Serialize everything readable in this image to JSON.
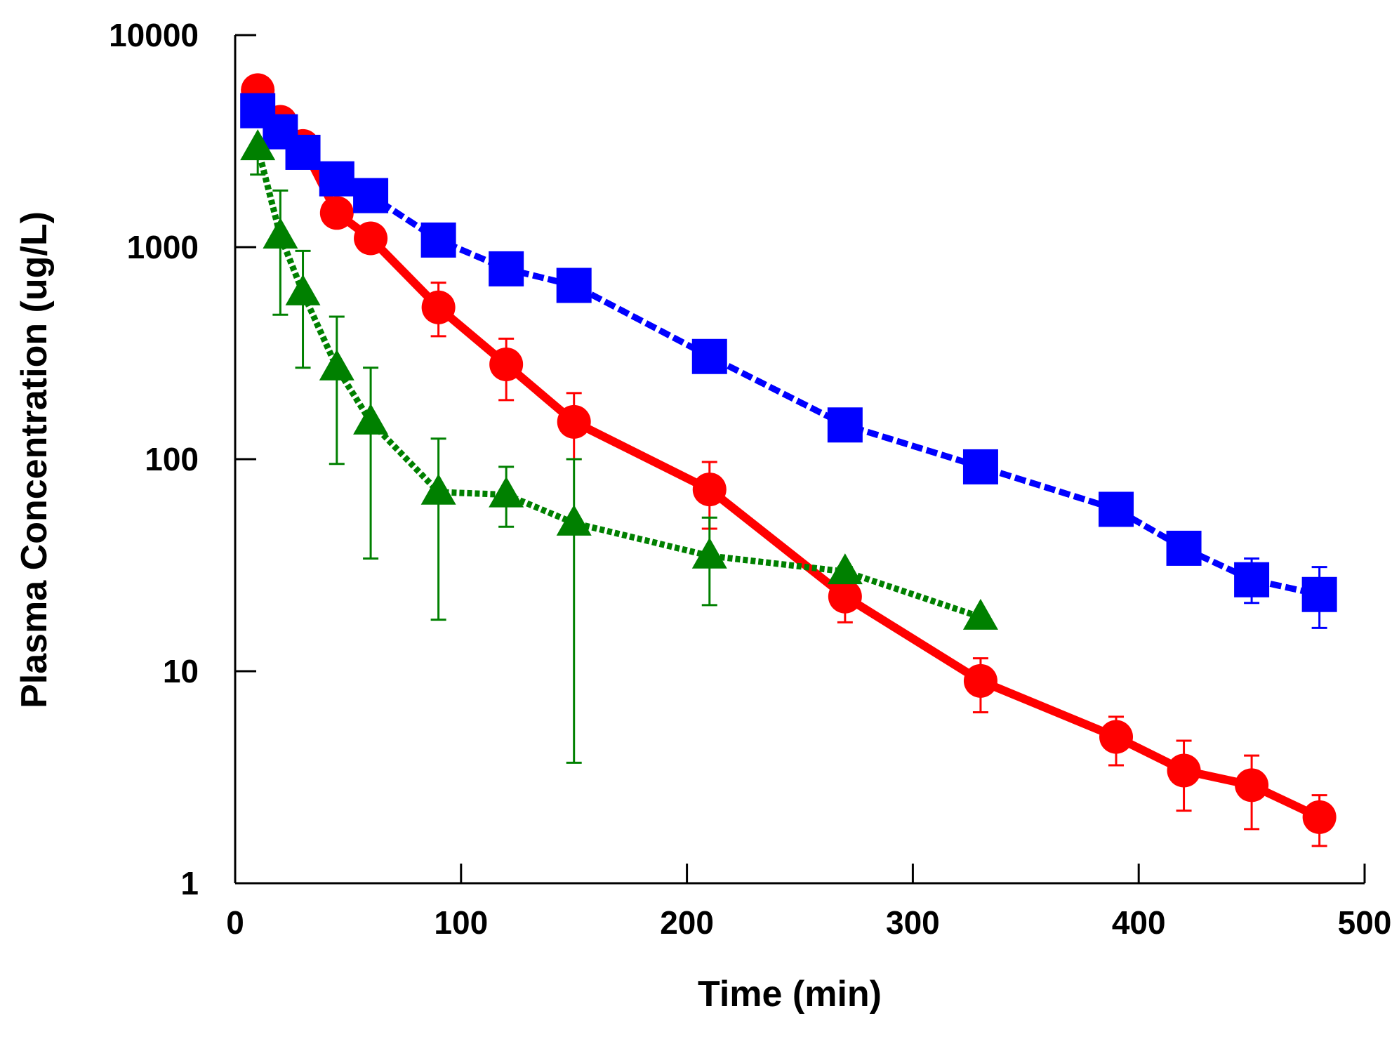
{
  "chart_data": {
    "type": "line",
    "xlabel": "Time (min)",
    "ylabel": "Plasma Concentration (ug/L)",
    "xlim": [
      0,
      500
    ],
    "ylim": [
      1,
      10000
    ],
    "yscale": "log",
    "grid": false,
    "x_ticks": [
      0,
      100,
      200,
      300,
      400,
      500
    ],
    "x_tick_labels": [
      "0",
      "100",
      "200",
      "300",
      "400",
      "500"
    ],
    "y_ticks": [
      1,
      10,
      100,
      1000,
      10000
    ],
    "y_tick_labels": [
      "1",
      "10",
      "100",
      "1000",
      "10000"
    ],
    "series": [
      {
        "color": "#ff0000",
        "marker": "circle",
        "line": "solid",
        "x": [
          10,
          20,
          30,
          45,
          60,
          90,
          120,
          150,
          210,
          270,
          330,
          390,
          420,
          450,
          480
        ],
        "y": [
          5500,
          3900,
          3000,
          1450,
          1100,
          520,
          280,
          150,
          72,
          22.5,
          9,
          4.9,
          3.4,
          2.9,
          2.05
        ],
        "err_upper": [
          null,
          null,
          null,
          null,
          null,
          680,
          370,
          205,
          97,
          27,
          11.5,
          6.1,
          4.7,
          4.0,
          2.6
        ],
        "err_lower": [
          null,
          null,
          null,
          null,
          null,
          380,
          190,
          100,
          47,
          17,
          6.4,
          3.6,
          2.2,
          1.8,
          1.5
        ]
      },
      {
        "color": "#0000ff",
        "marker": "square",
        "line": "dashed",
        "x": [
          10,
          20,
          30,
          45,
          60,
          90,
          120,
          150,
          210,
          270,
          330,
          390,
          420,
          450,
          480
        ],
        "y": [
          4400,
          3500,
          2800,
          2100,
          1750,
          1080,
          790,
          660,
          305,
          145,
          92,
          58,
          38,
          27,
          23
        ],
        "err_upper": [
          null,
          null,
          null,
          null,
          null,
          null,
          null,
          null,
          null,
          null,
          null,
          null,
          44,
          34,
          31
        ],
        "err_lower": [
          null,
          null,
          null,
          null,
          null,
          null,
          null,
          null,
          null,
          null,
          null,
          null,
          32,
          21,
          16
        ]
      },
      {
        "color": "#008000",
        "marker": "triangle",
        "line": "dotted",
        "x": [
          10,
          20,
          30,
          45,
          60,
          90,
          120,
          150,
          210,
          270,
          330
        ],
        "y": [
          2950,
          1130,
          610,
          270,
          150,
          70,
          68,
          50,
          35,
          29.5,
          18
        ],
        "err_upper": [
          null,
          1850,
          960,
          470,
          270,
          125,
          92,
          100,
          53,
          31,
          null
        ],
        "err_lower": [
          2200,
          480,
          270,
          95,
          34,
          17.5,
          48,
          3.7,
          20.5,
          28,
          null
        ]
      }
    ]
  }
}
